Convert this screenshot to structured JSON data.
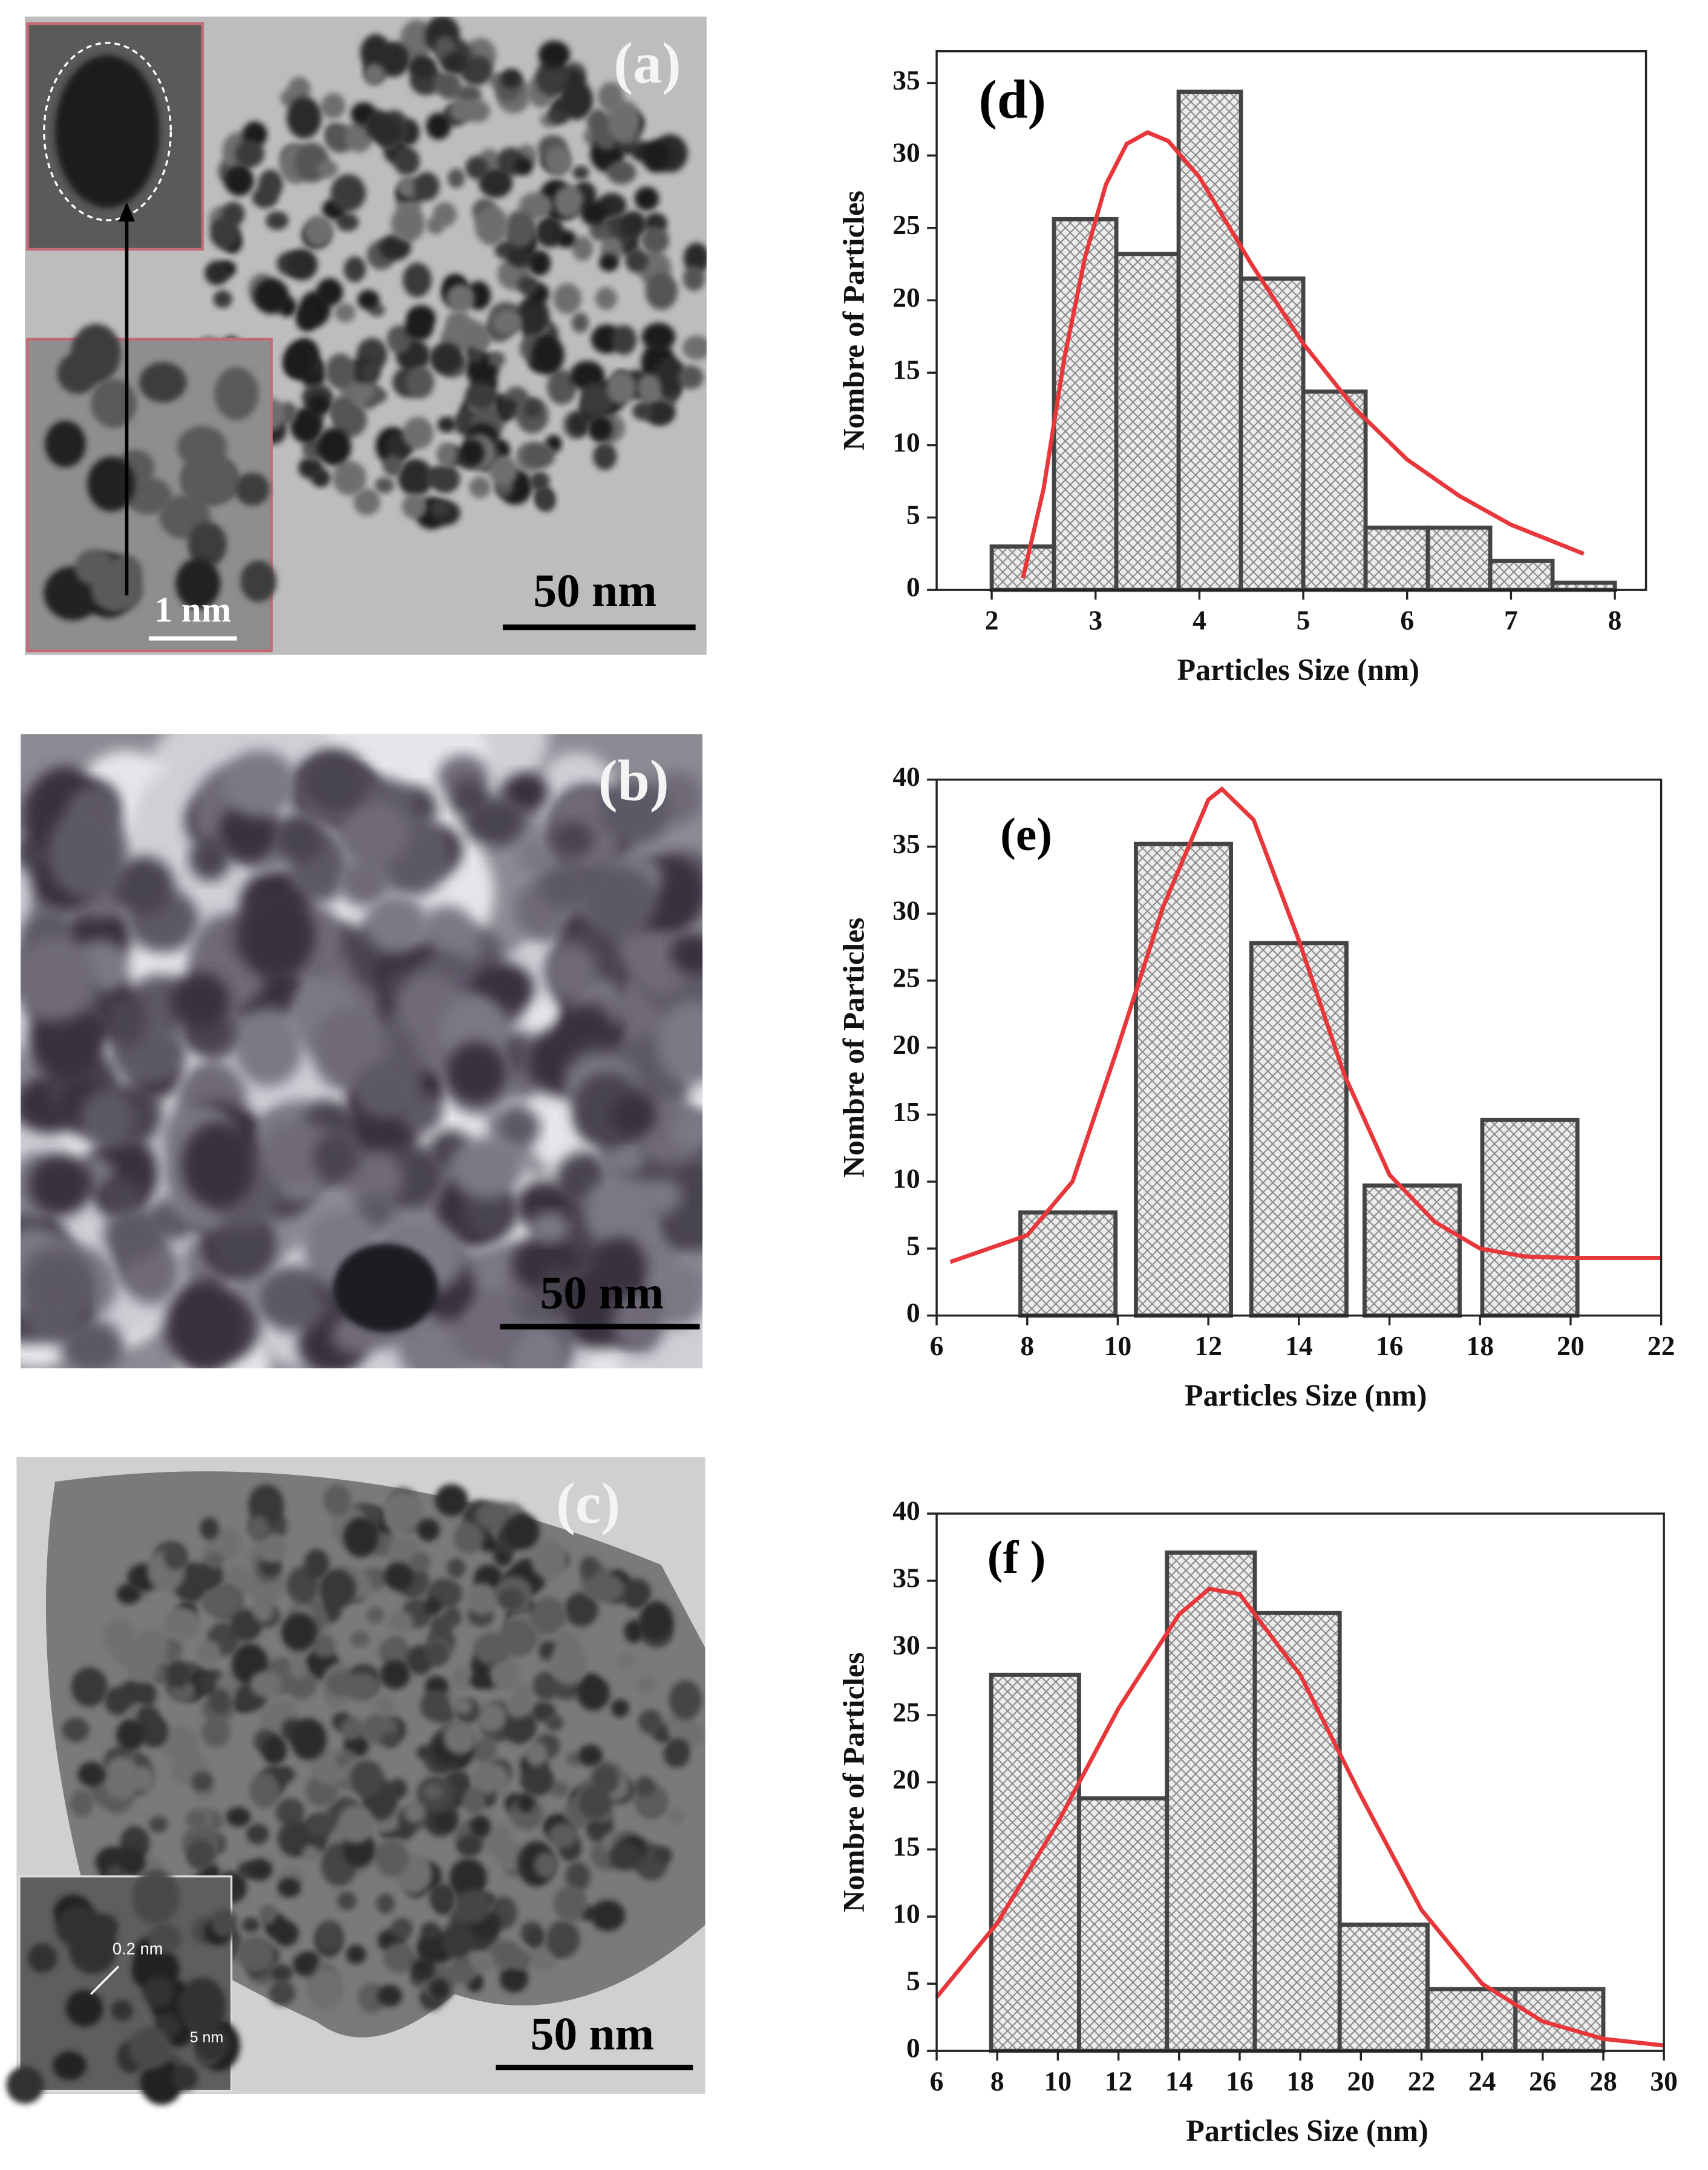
{
  "images": [
    {
      "label": "(a)",
      "scale_bar": "50 nm",
      "inset_scale": "1 nm"
    },
    {
      "label": "(b)",
      "scale_bar": "50 nm"
    },
    {
      "label": "(c)",
      "scale_bar": "50 nm",
      "inset_scale": "5 nm",
      "inset_spacing": "0.2 nm"
    }
  ],
  "chart_data": [
    {
      "type": "histogram",
      "title": "(d)",
      "x_label": "Particles Size (nm)",
      "y_label": "Nombre of Particles",
      "bins": [
        2.0,
        2.6,
        3.2,
        3.8,
        4.4,
        5.0,
        5.6,
        6.2,
        6.8,
        7.4,
        8.0
      ],
      "values": [
        3.0,
        25.6,
        23.2,
        34.4,
        21.5,
        13.7,
        4.3,
        4.3,
        2.0,
        0.5
      ],
      "xlim": [
        1.47,
        8.3
      ],
      "ylim": [
        0,
        37.2
      ],
      "xticks": [
        2,
        3,
        4,
        5,
        6,
        7,
        8
      ],
      "yticks": [
        0,
        5,
        10,
        15,
        20,
        25,
        30,
        35
      ],
      "color": "#e8e8e8",
      "edge_color": "#444444",
      "fit": {
        "color": "#e8373a",
        "x": [
          2.3,
          2.5,
          2.7,
          2.9,
          3.1,
          3.3,
          3.5,
          3.7,
          4.0,
          4.5,
          5.0,
          5.5,
          6.0,
          6.5,
          7.0,
          7.7
        ],
        "values": [
          0.8,
          7,
          16,
          23,
          28,
          30.8,
          31.6,
          31,
          28.5,
          22.5,
          17,
          12.5,
          9,
          6.5,
          4.5,
          2.5
        ]
      }
    },
    {
      "type": "bar",
      "title": "(e)",
      "x_label": "Particles Size (nm)",
      "y_label": "Nombre of Particles",
      "x": [
        8.9,
        11.45,
        14.0,
        16.5,
        19.1
      ],
      "bar_width": 2.1,
      "values": [
        7.7,
        35.2,
        27.8,
        9.7,
        14.6
      ],
      "xlim": [
        6,
        22
      ],
      "ylim": [
        0,
        40
      ],
      "xticks": [
        6,
        8,
        10,
        12,
        14,
        16,
        18,
        20,
        22
      ],
      "yticks": [
        0,
        5,
        10,
        15,
        20,
        25,
        30,
        35,
        40
      ],
      "color": "#e8e8e8",
      "edge_color": "#444444",
      "fit": {
        "color": "#e8373a",
        "x": [
          6.3,
          8,
          9,
          10,
          11,
          12,
          12.3,
          13,
          14,
          15,
          16,
          17,
          18,
          19,
          20,
          22
        ],
        "values": [
          4,
          6,
          10,
          20,
          30.5,
          38.5,
          39.3,
          37,
          28,
          18,
          10.5,
          7,
          5,
          4.4,
          4.3,
          4.3
        ]
      }
    },
    {
      "type": "histogram",
      "title": "(f )",
      "x_label": "Particles Size (nm)",
      "y_label": "Nombre of Particles",
      "bins": [
        7.8,
        10.7,
        13.6,
        16.5,
        19.3,
        22.2,
        25.1,
        28.0
      ],
      "values": [
        28.0,
        18.8,
        37.1,
        32.6,
        9.4,
        4.6,
        4.6
      ],
      "xlim": [
        6,
        30
      ],
      "ylim": [
        0,
        40
      ],
      "xticks": [
        6,
        8,
        10,
        12,
        14,
        16,
        18,
        20,
        22,
        24,
        26,
        28,
        30
      ],
      "yticks": [
        0,
        5,
        10,
        15,
        20,
        25,
        30,
        35,
        40
      ],
      "color": "#e8e8e8",
      "edge_color": "#444444",
      "fit": {
        "color": "#e8373a",
        "x": [
          6,
          8,
          10,
          12,
          14,
          15,
          16,
          18,
          20,
          22,
          24,
          26,
          28,
          30
        ],
        "values": [
          4,
          9.5,
          17,
          25.5,
          32.5,
          34.4,
          34,
          28,
          19,
          10.5,
          5,
          2.2,
          0.9,
          0.4
        ]
      }
    }
  ]
}
